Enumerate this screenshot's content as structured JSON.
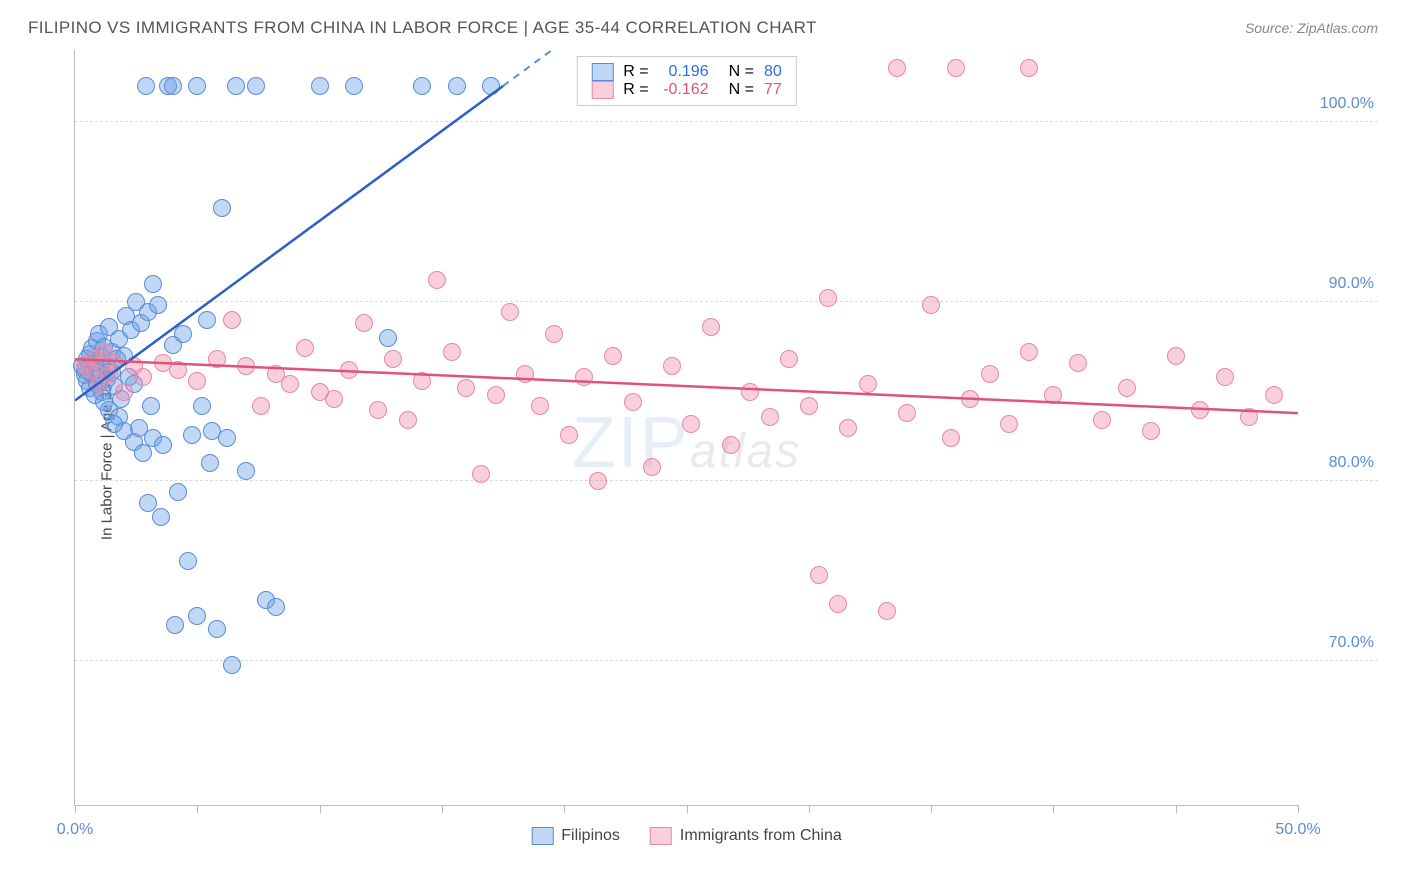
{
  "title": "FILIPINO VS IMMIGRANTS FROM CHINA IN LABOR FORCE | AGE 35-44 CORRELATION CHART",
  "source": "Source: ZipAtlas.com",
  "ylabel": "In Labor Force | Age 35-44",
  "watermark_main": "ZIP",
  "watermark_sub": "atlas",
  "chart": {
    "type": "scatter",
    "xlim": [
      0,
      50
    ],
    "ylim": [
      62,
      104
    ],
    "x_ticks": [
      0,
      5,
      10,
      15,
      20,
      25,
      30,
      35,
      40,
      45,
      50
    ],
    "x_tick_labels": {
      "0": "0.0%",
      "50": "50.0%"
    },
    "y_gridlines": [
      70,
      80,
      90,
      100
    ],
    "y_tick_labels": {
      "70": "70.0%",
      "80": "80.0%",
      "90": "90.0%",
      "100": "100.0%"
    },
    "background_color": "#ffffff",
    "grid_color": "#dcdcdc",
    "marker_radius": 9,
    "marker_opacity": 0.55,
    "series": [
      {
        "name": "Filipinos",
        "color_fill": "rgba(106,160,230,0.42)",
        "color_stroke": "#5a8dd6",
        "line_color": "#2a5fc7",
        "line_dash_color": "#5a8dd6",
        "legend_R": "0.196",
        "legend_N": "80",
        "trend": {
          "x1": 0,
          "y1": 84.5,
          "x2": 17.5,
          "y2": 102,
          "dash_to_x": 32
        },
        "points": [
          [
            0.3,
            86.4
          ],
          [
            0.4,
            86.2
          ],
          [
            0.4,
            85.9
          ],
          [
            0.5,
            86.8
          ],
          [
            0.5,
            85.6
          ],
          [
            0.6,
            87.1
          ],
          [
            0.6,
            85.2
          ],
          [
            0.7,
            87.4
          ],
          [
            0.7,
            86.0
          ],
          [
            0.8,
            86.6
          ],
          [
            0.8,
            84.8
          ],
          [
            0.9,
            87.8
          ],
          [
            0.9,
            85.4
          ],
          [
            1.0,
            86.2
          ],
          [
            1.0,
            88.2
          ],
          [
            1.1,
            85.0
          ],
          [
            1.1,
            86.9
          ],
          [
            1.2,
            87.5
          ],
          [
            1.2,
            84.4
          ],
          [
            1.3,
            86.4
          ],
          [
            1.3,
            85.7
          ],
          [
            1.4,
            88.6
          ],
          [
            1.4,
            84.0
          ],
          [
            1.5,
            86.1
          ],
          [
            1.5,
            87.2
          ],
          [
            1.6,
            85.3
          ],
          [
            1.7,
            86.8
          ],
          [
            1.8,
            87.9
          ],
          [
            1.8,
            83.6
          ],
          [
            2.0,
            87.0
          ],
          [
            2.0,
            82.8
          ],
          [
            2.1,
            89.2
          ],
          [
            2.2,
            85.8
          ],
          [
            2.3,
            88.4
          ],
          [
            2.4,
            82.2
          ],
          [
            2.5,
            90.0
          ],
          [
            2.6,
            83.0
          ],
          [
            2.7,
            88.8
          ],
          [
            2.8,
            81.6
          ],
          [
            3.0,
            89.4
          ],
          [
            3.0,
            78.8
          ],
          [
            3.2,
            82.4
          ],
          [
            3.2,
            91.0
          ],
          [
            3.4,
            89.8
          ],
          [
            3.5,
            78.0
          ],
          [
            3.6,
            82.0
          ],
          [
            3.8,
            102
          ],
          [
            4.0,
            87.6
          ],
          [
            4.0,
            102
          ],
          [
            4.2,
            79.4
          ],
          [
            4.4,
            88.2
          ],
          [
            4.6,
            75.6
          ],
          [
            4.8,
            82.6
          ],
          [
            5.0,
            102
          ],
          [
            5.0,
            72.5
          ],
          [
            5.2,
            84.2
          ],
          [
            5.4,
            89.0
          ],
          [
            5.6,
            82.8
          ],
          [
            5.8,
            71.8
          ],
          [
            6.0,
            95.2
          ],
          [
            6.2,
            82.4
          ],
          [
            6.4,
            69.8
          ],
          [
            6.6,
            102
          ],
          [
            7.0,
            80.6
          ],
          [
            7.4,
            102
          ],
          [
            7.8,
            73.4
          ],
          [
            8.2,
            73.0
          ],
          [
            10.0,
            102
          ],
          [
            11.4,
            102
          ],
          [
            12.8,
            88.0
          ],
          [
            14.2,
            102
          ],
          [
            15.6,
            102
          ],
          [
            17.0,
            102
          ],
          [
            3.1,
            84.2
          ],
          [
            2.9,
            102
          ],
          [
            1.6,
            83.2
          ],
          [
            4.1,
            72.0
          ],
          [
            5.5,
            81.0
          ],
          [
            2.4,
            85.4
          ],
          [
            1.9,
            84.6
          ]
        ]
      },
      {
        "name": "Immigrants from China",
        "color_fill": "rgba(240,140,170,0.42)",
        "color_stroke": "#e589a8",
        "line_color": "#e0527d",
        "legend_R": "-0.162",
        "legend_N": "77",
        "trend": {
          "x1": 0,
          "y1": 86.8,
          "x2": 50,
          "y2": 83.8
        },
        "points": [
          [
            0.4,
            86.5
          ],
          [
            0.6,
            86.2
          ],
          [
            0.8,
            86.8
          ],
          [
            1.0,
            85.4
          ],
          [
            1.2,
            87.2
          ],
          [
            1.4,
            86.0
          ],
          [
            1.6,
            86.6
          ],
          [
            2.0,
            85.0
          ],
          [
            2.4,
            86.4
          ],
          [
            2.8,
            85.8
          ],
          [
            3.6,
            86.6
          ],
          [
            4.2,
            86.2
          ],
          [
            5.0,
            85.6
          ],
          [
            5.8,
            86.8
          ],
          [
            6.4,
            89.0
          ],
          [
            7.0,
            86.4
          ],
          [
            7.6,
            84.2
          ],
          [
            8.2,
            86.0
          ],
          [
            8.8,
            85.4
          ],
          [
            9.4,
            87.4
          ],
          [
            10.0,
            85.0
          ],
          [
            10.6,
            84.6
          ],
          [
            11.2,
            86.2
          ],
          [
            11.8,
            88.8
          ],
          [
            12.4,
            84.0
          ],
          [
            13.0,
            86.8
          ],
          [
            13.6,
            83.4
          ],
          [
            14.2,
            85.6
          ],
          [
            14.8,
            91.2
          ],
          [
            15.4,
            87.2
          ],
          [
            16.0,
            85.2
          ],
          [
            16.6,
            80.4
          ],
          [
            17.2,
            84.8
          ],
          [
            17.8,
            89.4
          ],
          [
            18.4,
            86.0
          ],
          [
            19.0,
            84.2
          ],
          [
            19.6,
            88.2
          ],
          [
            20.2,
            82.6
          ],
          [
            20.8,
            85.8
          ],
          [
            21.4,
            80.0
          ],
          [
            22.0,
            87.0
          ],
          [
            22.8,
            84.4
          ],
          [
            23.6,
            80.8
          ],
          [
            24.4,
            86.4
          ],
          [
            25.2,
            83.2
          ],
          [
            26.0,
            88.6
          ],
          [
            26.8,
            82.0
          ],
          [
            27.6,
            85.0
          ],
          [
            28.4,
            83.6
          ],
          [
            29.2,
            86.8
          ],
          [
            30.0,
            84.2
          ],
          [
            30.4,
            74.8
          ],
          [
            30.8,
            90.2
          ],
          [
            31.6,
            83.0
          ],
          [
            32.4,
            85.4
          ],
          [
            33.2,
            72.8
          ],
          [
            33.6,
            103
          ],
          [
            34.0,
            83.8
          ],
          [
            35.0,
            89.8
          ],
          [
            35.8,
            82.4
          ],
          [
            36.0,
            103
          ],
          [
            36.6,
            84.6
          ],
          [
            37.4,
            86.0
          ],
          [
            38.2,
            83.2
          ],
          [
            39.0,
            87.2
          ],
          [
            39.0,
            103
          ],
          [
            40.0,
            84.8
          ],
          [
            41.0,
            86.6
          ],
          [
            42.0,
            83.4
          ],
          [
            43.0,
            85.2
          ],
          [
            44.0,
            82.8
          ],
          [
            45.0,
            87.0
          ],
          [
            46.0,
            84.0
          ],
          [
            47.0,
            85.8
          ],
          [
            48.0,
            83.6
          ],
          [
            49.0,
            84.8
          ],
          [
            31.2,
            73.2
          ]
        ]
      }
    ]
  },
  "legend_bottom": [
    {
      "label": "Filipinos"
    },
    {
      "label": "Immigrants from China"
    }
  ]
}
